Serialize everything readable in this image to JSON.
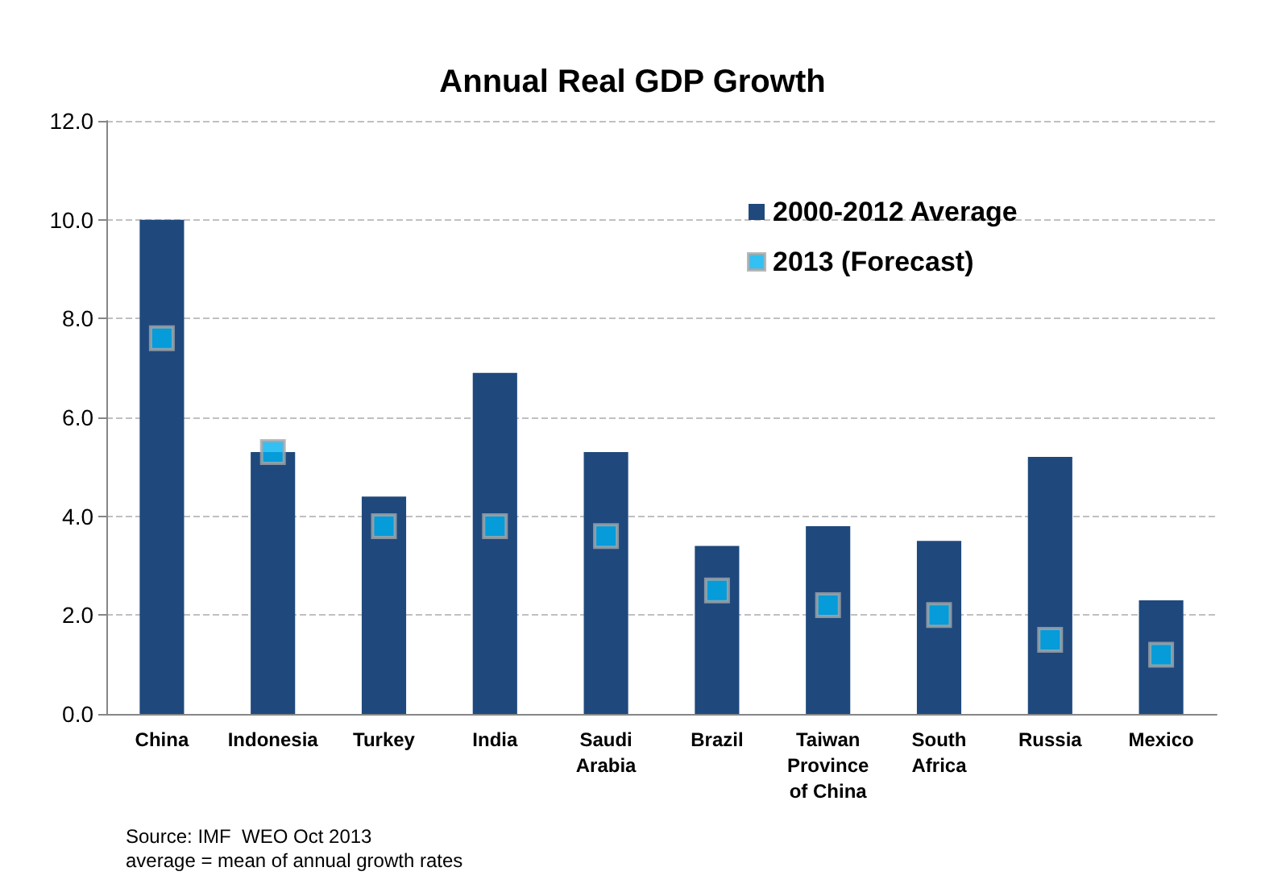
{
  "chart_data": {
    "type": "bar",
    "title": "Annual Real GDP Growth",
    "categories": [
      "China",
      "Indonesia",
      "Turkey",
      "India",
      "Saudi\nArabia",
      "Brazil",
      "Taiwan\nProvince\nof China",
      "South\nAfrica",
      "Russia",
      "Mexico"
    ],
    "series": [
      {
        "name": "2000-2012 Average",
        "color": "#1f497d",
        "values": [
          10.0,
          5.3,
          4.4,
          6.9,
          5.3,
          3.4,
          3.8,
          3.5,
          5.2,
          2.3
        ]
      },
      {
        "name": "2013 (Forecast)",
        "type": "scatter",
        "color": "#00b0f0",
        "values": [
          7.6,
          5.3,
          3.8,
          3.8,
          3.6,
          2.5,
          2.2,
          2.0,
          1.5,
          1.2
        ]
      }
    ],
    "ylim": [
      0,
      12
    ],
    "yticks": [
      {
        "value": 0,
        "label": "0.0"
      },
      {
        "value": 2,
        "label": "2.0"
      },
      {
        "value": 4,
        "label": "4.0"
      },
      {
        "value": 6,
        "label": "6.0"
      },
      {
        "value": 8,
        "label": "8.0"
      },
      {
        "value": 10,
        "label": "10.0"
      },
      {
        "value": 12,
        "label": "12.0"
      }
    ],
    "grid": "y",
    "legend": "top right",
    "marker": "square",
    "annotations": [
      "Source: IMF  WEO Oct 2013",
      "average = mean of annual growth rates"
    ]
  }
}
